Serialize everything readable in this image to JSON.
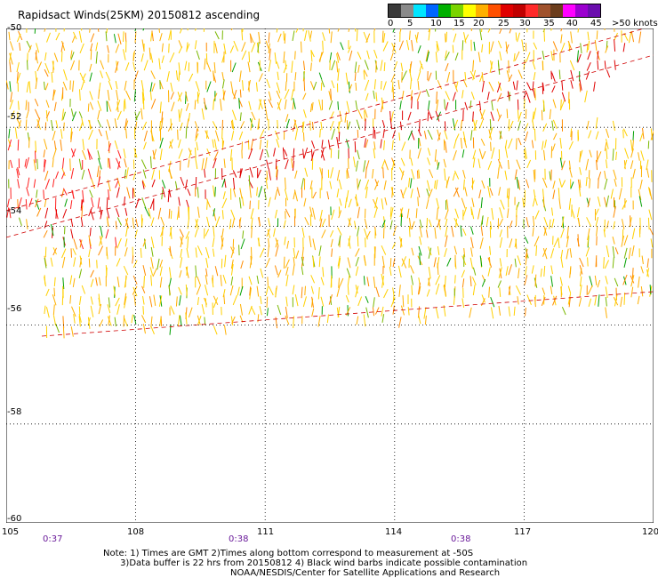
{
  "title": "Rapidsact Winds(25KM) 20150812 ascending",
  "legend": {
    "labels": [
      "0",
      "5",
      "10",
      "15",
      "20",
      "25",
      "30",
      "35",
      "40",
      "45",
      ">50 knots"
    ],
    "colors": [
      "#3a3a3a",
      "#8a8a8a",
      "#00e5ff",
      "#0066ff",
      "#00b000",
      "#7ad400",
      "#ffff00",
      "#ffb000",
      "#ff5000",
      "#e00000",
      "#c00000",
      "#ff2a2a",
      "#a0522d",
      "#6b3d1c",
      "#ff00ff",
      "#9b00cf",
      "#6a0dad"
    ]
  },
  "map": {
    "lat_labels": [
      "-50",
      "-52",
      "-54",
      "-56",
      "-58",
      "-60"
    ],
    "lon_labels": [
      "105",
      "108",
      "111",
      "114",
      "117",
      "120"
    ],
    "time_labels": [
      "0:37",
      "0:38",
      "0:38"
    ],
    "lat_range": [
      -60,
      -50
    ],
    "lon_range": [
      105,
      120
    ],
    "grid": true,
    "barb_colors": [
      "#ffd000",
      "#ffb000",
      "#ff8c00",
      "#e00000",
      "#ff2020",
      "#00a000",
      "#7ab800"
    ]
  },
  "notes": [
    "Note: 1) Times are GMT 2)Times along bottom correspond to measurement at -50S",
    "      3)Data buffer is 22 hrs from 20150812 4) Black wind barbs indicate possible contamination",
    "                                             NOAA/NESDIS/Center for Satellite Applications and Research"
  ]
}
